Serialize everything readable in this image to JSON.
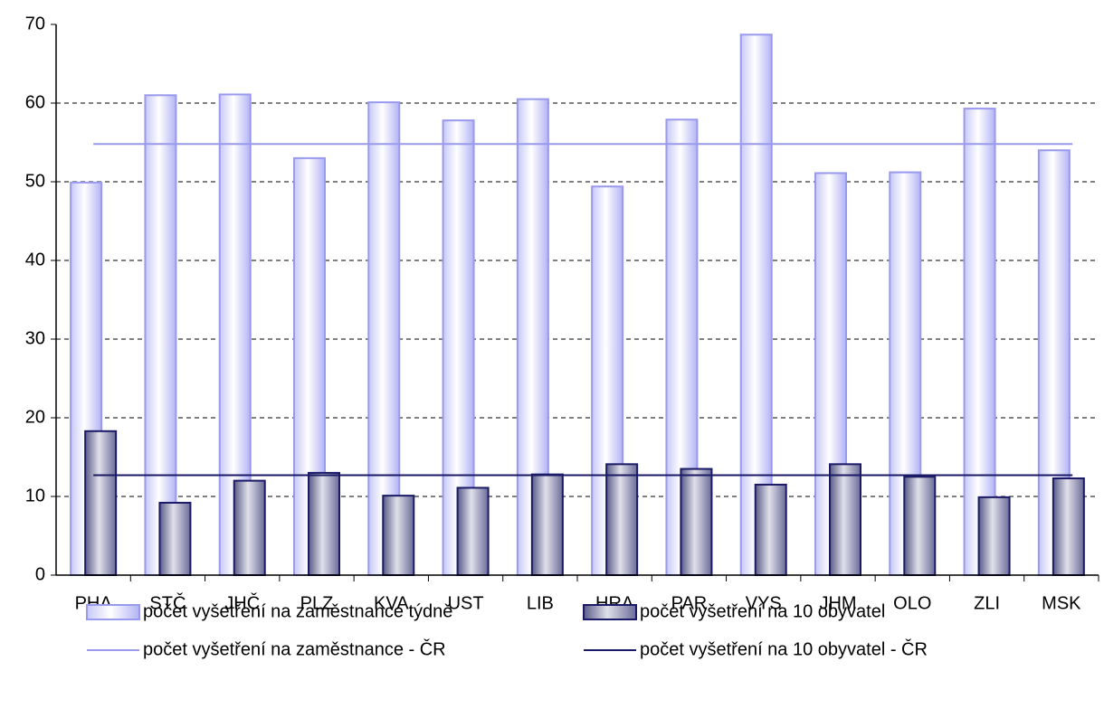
{
  "chart_data": {
    "type": "bar",
    "categories": [
      "PHA",
      "STČ",
      "JHČ",
      "PLZ",
      "KVA",
      "UST",
      "LIB",
      "HRA",
      "PAR",
      "VYS",
      "JHM",
      "OLO",
      "ZLI",
      "MSK"
    ],
    "series": [
      {
        "name": "počet vyšetření na zaměstnance týdně",
        "color": "#b3b3f5",
        "values": [
          49.9,
          61.0,
          61.1,
          53.0,
          60.1,
          57.8,
          60.5,
          49.4,
          57.9,
          68.7,
          51.1,
          51.2,
          59.3,
          54.0
        ]
      },
      {
        "name": "počet vyšetření na 10 obyvatel",
        "color": "#6b6b99",
        "values": [
          18.3,
          9.2,
          12.0,
          13.0,
          10.1,
          11.1,
          12.8,
          14.1,
          13.5,
          11.5,
          14.1,
          12.5,
          9.9,
          12.3
        ]
      },
      {
        "name": "počet vyšetření na zaměstnance - ČR",
        "color": "#9999ee",
        "type": "line",
        "value": 54.8
      },
      {
        "name": "počet vyšetření na 10 obyvatel - ČR",
        "color": "#1a1a66",
        "type": "line",
        "value": 12.7
      }
    ],
    "ylim": [
      0,
      70
    ],
    "yticks": [
      0,
      10,
      20,
      30,
      40,
      50,
      60,
      70
    ],
    "grid": true
  }
}
